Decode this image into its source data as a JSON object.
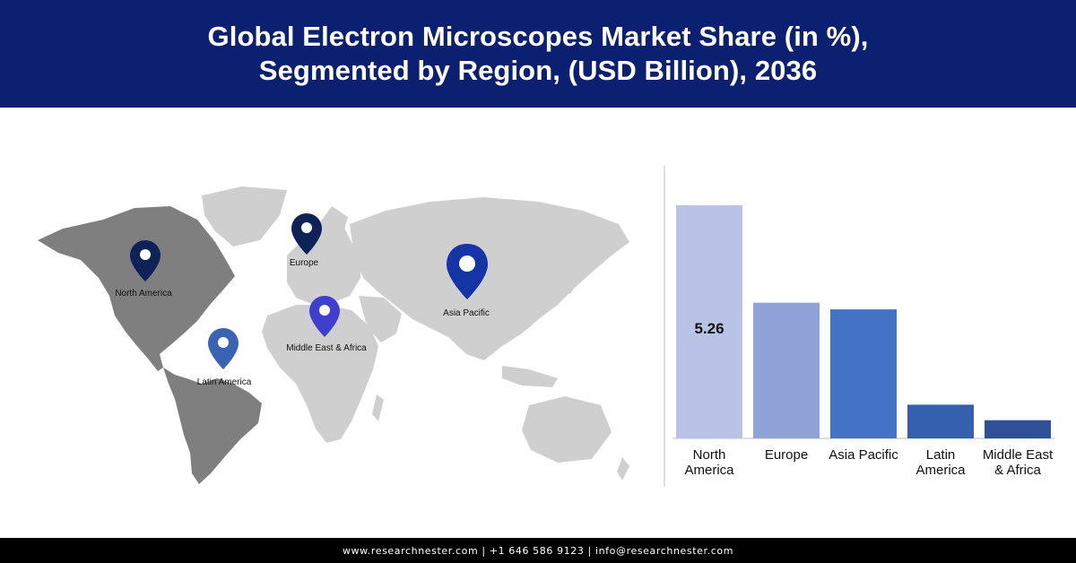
{
  "header": {
    "title_line1": "Global Electron Microscopes Market Share (in %),",
    "title_line2": "Segmented by Region, (USD Billion), 2036",
    "background_color": "#0b2070"
  },
  "map": {
    "pins": [
      {
        "label": "North America",
        "color": "#0d2257"
      },
      {
        "label": "Europe",
        "color": "#0d2257"
      },
      {
        "label": "Asia Pacific",
        "color": "#1534a5"
      },
      {
        "label": "Middle East & Africa",
        "color": "#3f3fcf"
      },
      {
        "label": "Latin America",
        "color": "#3b63b3"
      }
    ],
    "highlight_color": "#7f7f7f",
    "base_color": "#cfcfcf"
  },
  "chart_data": {
    "type": "bar",
    "categories": [
      "North America",
      "Europe",
      "Asia Pacific",
      "Latin America",
      "Middle East & Africa"
    ],
    "category_labels": [
      [
        "North",
        "America"
      ],
      [
        "Europe"
      ],
      [
        "Asia Pacific"
      ],
      [
        "Latin",
        "America"
      ],
      [
        "Middle East",
        "& Africa"
      ]
    ],
    "values": [
      5.26,
      3.06,
      2.91,
      0.76,
      0.41
    ],
    "data_labels": [
      "5.26",
      "",
      "",
      "",
      ""
    ],
    "colors": [
      "#b8c3e6",
      "#8fa3d8",
      "#4472c4",
      "#3560ad",
      "#2f4f96"
    ],
    "ylim": [
      0,
      5.5
    ],
    "grid": false,
    "legend": "none"
  },
  "footer": {
    "text": "www.researchnester.com | +1 646 586 9123 | info@researchnester.com"
  }
}
